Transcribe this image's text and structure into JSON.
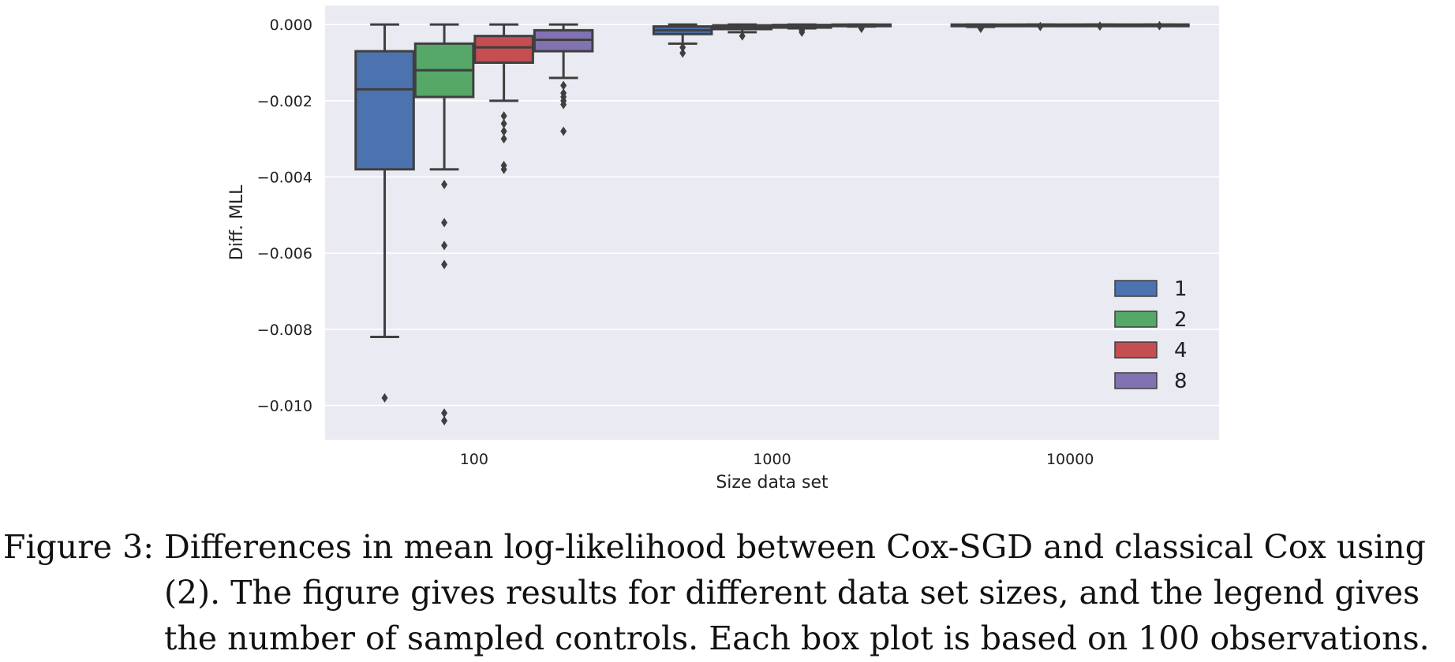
{
  "chart_data": {
    "type": "box",
    "xlabel": "Size data set",
    "ylabel": "Diff. MLL",
    "categories": [
      "100",
      "1000",
      "10000"
    ],
    "ylim": [
      -0.0109,
      0.0005
    ],
    "yticks": [
      0.0,
      -0.002,
      -0.004,
      -0.006,
      -0.008,
      -0.01
    ],
    "ytick_labels": [
      "0.000",
      "−0.002",
      "−0.004",
      "−0.006",
      "−0.008",
      "−0.010"
    ],
    "grid": true,
    "legend_position": "bottom-right",
    "series": [
      {
        "name": "1",
        "color": "#4c72b0",
        "boxes": [
          {
            "q1": -0.0038,
            "median": -0.0017,
            "q3": -0.0007,
            "whisker_low": -0.0082,
            "whisker_high": 0.0,
            "outliers": [
              -0.0098
            ]
          },
          {
            "q1": -0.00025,
            "median": -0.00015,
            "q3": -5e-05,
            "whisker_low": -0.0005,
            "whisker_high": 0.0,
            "outliers": [
              -0.00075,
              -0.0006
            ]
          },
          {
            "q1": -3e-05,
            "median": -1e-05,
            "q3": 0.0,
            "whisker_low": -6e-05,
            "whisker_high": 0.0,
            "outliers": [
              -0.0001
            ]
          }
        ]
      },
      {
        "name": "2",
        "color": "#55a868",
        "boxes": [
          {
            "q1": -0.0019,
            "median": -0.0012,
            "q3": -0.0005,
            "whisker_low": -0.0038,
            "whisker_high": 0.0,
            "outliers": [
              -0.0042,
              -0.0052,
              -0.0058,
              -0.0063,
              -0.0102,
              -0.0104
            ]
          },
          {
            "q1": -0.00012,
            "median": -7e-05,
            "q3": -2e-05,
            "whisker_low": -0.0002,
            "whisker_high": 0.0,
            "outliers": [
              -0.0003
            ]
          },
          {
            "q1": -1e-05,
            "median": -5e-06,
            "q3": 0.0,
            "whisker_low": -3e-05,
            "whisker_high": 0.0,
            "outliers": [
              -5e-05
            ]
          }
        ]
      },
      {
        "name": "4",
        "color": "#c44e52",
        "boxes": [
          {
            "q1": -0.001,
            "median": -0.0006,
            "q3": -0.0003,
            "whisker_low": -0.002,
            "whisker_high": 0.0,
            "outliers": [
              -0.0024,
              -0.0026,
              -0.0028,
              -0.003,
              -0.0037,
              -0.0038
            ]
          },
          {
            "q1": -8e-05,
            "median": -4e-05,
            "q3": -1e-05,
            "whisker_low": -0.0001,
            "whisker_high": 0.0,
            "outliers": [
              -0.00015,
              -0.0002
            ]
          },
          {
            "q1": -1e-05,
            "median": -3e-06,
            "q3": 0.0,
            "whisker_low": -2e-05,
            "whisker_high": 0.0,
            "outliers": [
              -4e-05
            ]
          }
        ]
      },
      {
        "name": "8",
        "color": "#8172b2",
        "boxes": [
          {
            "q1": -0.0007,
            "median": -0.0004,
            "q3": -0.00015,
            "whisker_low": -0.0014,
            "whisker_high": 0.0,
            "outliers": [
              -0.0016,
              -0.0018,
              -0.0019,
              -0.002,
              -0.0021,
              -0.0028
            ]
          },
          {
            "q1": -4e-05,
            "median": -2e-05,
            "q3": 0.0,
            "whisker_low": -5e-05,
            "whisker_high": 0.0,
            "outliers": [
              -0.0001
            ]
          },
          {
            "q1": -5e-06,
            "median": -2e-06,
            "q3": 0.0,
            "whisker_low": -1e-05,
            "whisker_high": 0.0,
            "outliers": [
              -3e-05
            ]
          }
        ]
      }
    ]
  },
  "caption": {
    "prefix": "Figure 3:",
    "text": "Differences in mean log-likelihood between Cox-SGD and classical Cox using (2). The figure gives results for different data set sizes, and the legend gives the number of sampled controls. Each box plot is based on 100 observations."
  }
}
